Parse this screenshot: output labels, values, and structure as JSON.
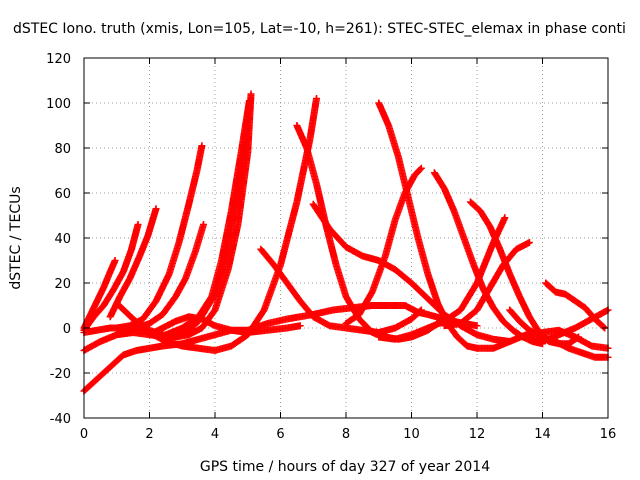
{
  "chart_data": {
    "type": "scatter",
    "title": "dSTEC Iono. truth (xmis, Lon=105, Lat=-10, h=261): STEC-STEC_elemax in phase conti",
    "xlabel": "GPS time / hours of day 327 of year 2014",
    "ylabel": "dSTEC  / TECUs",
    "xlim": [
      0,
      16
    ],
    "ylim": [
      -40,
      120
    ],
    "xticks": [
      "0",
      "2",
      "4",
      "6",
      "8",
      "10",
      "12",
      "14",
      "16"
    ],
    "yticks": [
      "-40",
      "-20",
      "0",
      "20",
      "40",
      "60",
      "80",
      "100",
      "120"
    ],
    "grid": true,
    "legend": "none",
    "marker": "plus",
    "color": "#ff0000",
    "series": [
      {
        "x": [
          0,
          0.3,
          0.6,
          0.9,
          1.2,
          1.6,
          2.0,
          2.4,
          3.0,
          3.5,
          4.0,
          4.5,
          5.0,
          5.6,
          6.2,
          7.0,
          7.6,
          8.2,
          8.8,
          9.4,
          9.8,
          10.2,
          10.5,
          11.0,
          11.6,
          12.0
        ],
        "y": [
          -28,
          -24,
          -20,
          -16,
          -12,
          -10,
          -9,
          -8,
          -7,
          -5,
          -3,
          -1,
          -1,
          2,
          4,
          6,
          8,
          9,
          10,
          10,
          10,
          7,
          6,
          4,
          2,
          1
        ]
      },
      {
        "x": [
          0,
          0.2,
          0.4,
          0.6,
          0.8,
          0.95
        ],
        "y": [
          0,
          6,
          12,
          18,
          25,
          30
        ]
      },
      {
        "x": [
          0,
          0.3,
          0.6,
          0.9,
          1.2,
          1.45,
          1.65
        ],
        "y": [
          -1,
          5,
          10,
          17,
          25,
          35,
          46
        ]
      },
      {
        "x": [
          0.8,
          1.1,
          1.4,
          1.7,
          1.95,
          2.2
        ],
        "y": [
          5,
          14,
          22,
          32,
          41,
          53
        ]
      },
      {
        "x": [
          1.0,
          1.4,
          1.8,
          2.2,
          2.6,
          2.9,
          3.2,
          3.45,
          3.6
        ],
        "y": [
          0,
          1,
          4,
          12,
          24,
          38,
          55,
          70,
          81
        ]
      },
      {
        "x": [
          1.2,
          1.6,
          2.0,
          2.4,
          2.8,
          3.1,
          3.4,
          3.65
        ],
        "y": [
          -1,
          0,
          2,
          6,
          14,
          22,
          34,
          46
        ]
      },
      {
        "x": [
          0,
          0.4,
          0.8,
          1.2,
          1.6,
          2.0,
          2.4,
          2.8,
          3.2,
          3.6,
          4.0,
          4.4,
          4.7,
          5.0,
          5.1
        ],
        "y": [
          -2,
          -1,
          0,
          0,
          0,
          -1,
          -3,
          -4,
          -3,
          0,
          8,
          26,
          46,
          78,
          104
        ]
      },
      {
        "x": [
          2.5,
          3.0,
          3.5,
          3.9,
          4.2,
          4.5,
          4.8,
          5.05
        ],
        "y": [
          -3,
          0,
          5,
          14,
          30,
          52,
          78,
          101
        ]
      },
      {
        "x": [
          0,
          0.5,
          1.0,
          1.5,
          2.0,
          2.5,
          3.0,
          3.5,
          4.0,
          4.3,
          4.6,
          4.9,
          5.05
        ],
        "y": [
          -10,
          -6,
          -3,
          -2,
          -3,
          -4,
          -3,
          3,
          15,
          30,
          52,
          80,
          100
        ]
      },
      {
        "x": [
          1.0,
          1.5,
          2.0,
          2.5,
          3.0,
          3.5,
          4.0,
          4.5,
          5.0,
          5.5,
          6.0,
          6.5,
          6.9,
          7.1
        ],
        "y": [
          11,
          4,
          -2,
          -6,
          -8,
          -9,
          -10,
          -8,
          -3,
          8,
          28,
          56,
          84,
          102
        ]
      },
      {
        "x": [
          2.0,
          2.4,
          2.8,
          3.2,
          3.6,
          4.0,
          4.5,
          5.0,
          5.6,
          6.2,
          6.6
        ],
        "y": [
          -3,
          0,
          3,
          5,
          4,
          1,
          -1,
          -2,
          -1,
          0,
          1
        ]
      },
      {
        "x": [
          5.4,
          5.8,
          6.2,
          6.6,
          7.0,
          7.5,
          8.0,
          8.5,
          9.0,
          9.5,
          10.0,
          10.3
        ],
        "y": [
          35,
          28,
          20,
          12,
          5,
          1,
          0,
          -1,
          -2,
          0,
          4,
          8
        ]
      },
      {
        "x": [
          6.5,
          6.8,
          7.1,
          7.4,
          7.7,
          8.0,
          8.4,
          8.8,
          9.2,
          9.6,
          10.0,
          10.5,
          10.9
        ],
        "y": [
          90,
          80,
          64,
          45,
          28,
          14,
          4,
          -2,
          -4,
          -5,
          -4,
          -1,
          3
        ]
      },
      {
        "x": [
          7.0,
          7.5,
          8.0,
          8.5,
          9.0,
          9.5,
          10.0,
          10.5,
          11.0,
          11.5,
          12.0,
          12.5,
          13.0
        ],
        "y": [
          55,
          44,
          36,
          32,
          30,
          26,
          20,
          13,
          6,
          1,
          -3,
          -5,
          -6
        ]
      },
      {
        "x": [
          8.0,
          8.4,
          8.8,
          9.2,
          9.5,
          9.8,
          10.1,
          10.3
        ],
        "y": [
          2,
          6,
          16,
          32,
          48,
          60,
          68,
          71
        ]
      },
      {
        "x": [
          9.0,
          9.3,
          9.6,
          9.9,
          10.2,
          10.5,
          10.8,
          11.1,
          11.4,
          11.7,
          12.0
        ],
        "y": [
          100,
          90,
          76,
          58,
          40,
          24,
          11,
          2,
          -4,
          -8,
          -9
        ]
      },
      {
        "x": [
          10.7,
          11.0,
          11.3,
          11.6,
          11.9,
          12.2,
          12.5,
          12.8,
          13.1,
          13.4,
          13.7,
          14.0
        ],
        "y": [
          69,
          62,
          52,
          40,
          28,
          17,
          9,
          3,
          -1,
          -4,
          -6,
          -7
        ]
      },
      {
        "x": [
          9.0,
          9.5,
          10.0,
          10.5,
          11.0,
          11.5,
          12.0,
          12.5,
          12.85
        ],
        "y": [
          -4,
          -5,
          -3,
          0,
          3,
          8,
          20,
          38,
          49
        ]
      },
      {
        "x": [
          11.8,
          12.1,
          12.4,
          12.7,
          13.0,
          13.3,
          13.6,
          13.9,
          14.2,
          14.5,
          14.8,
          15.1
        ],
        "y": [
          56,
          52,
          45,
          35,
          24,
          14,
          5,
          -2,
          -6,
          -7,
          -7,
          -4
        ]
      },
      {
        "x": [
          11.0,
          11.5,
          12.0,
          12.4,
          12.8,
          13.2,
          13.6
        ],
        "y": [
          1,
          2,
          8,
          18,
          28,
          35,
          38
        ]
      },
      {
        "x": [
          12.0,
          12.5,
          13.0,
          13.5,
          14.0,
          14.5,
          15.0,
          15.5,
          16.0
        ],
        "y": [
          -9,
          -9,
          -6,
          -3,
          -2,
          -1,
          -4,
          -8,
          -9
        ]
      },
      {
        "x": [
          13.0,
          13.3,
          13.6,
          14.0,
          14.4,
          14.8,
          15.2,
          15.6,
          16.0
        ],
        "y": [
          8,
          3,
          -1,
          -4,
          -6,
          -9,
          -11,
          -13,
          -13
        ]
      },
      {
        "x": [
          14.1,
          14.4,
          14.7,
          15.0,
          15.3,
          15.6,
          15.9
        ],
        "y": [
          20,
          16,
          15,
          12,
          9,
          4,
          0
        ]
      },
      {
        "x": [
          13.5,
          14.0,
          14.5,
          15.0,
          15.5,
          16.0
        ],
        "y": [
          -4,
          -6,
          -3,
          0,
          4,
          8
        ]
      }
    ]
  }
}
